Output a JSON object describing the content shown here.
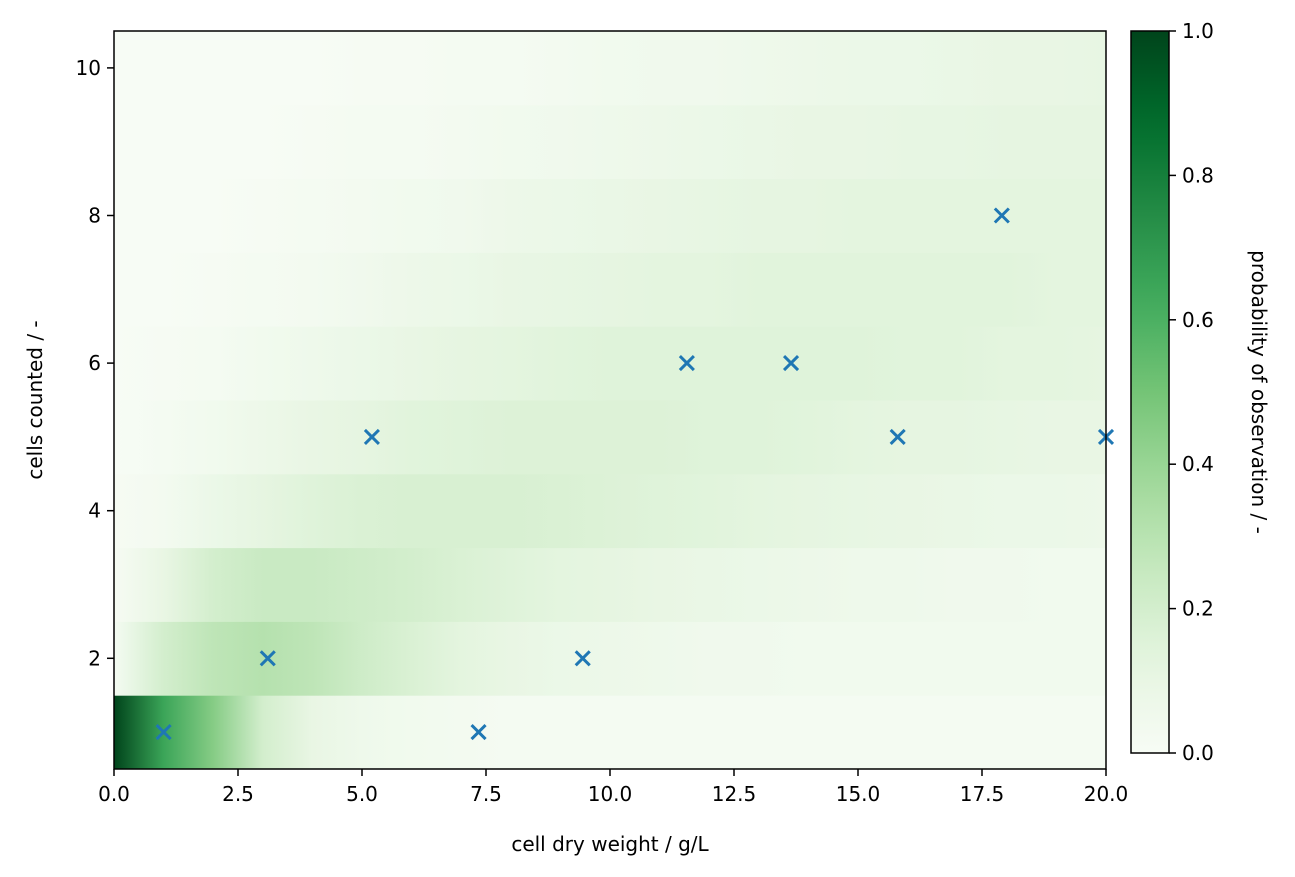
{
  "chart_data": {
    "type": "heatmap",
    "title": "",
    "xlabel": "cell dry weight / g/L",
    "ylabel": "cells counted / -",
    "xlim": [
      0,
      20
    ],
    "ylim": [
      0.5,
      10.5
    ],
    "x_ticks": [
      "0.0",
      "2.5",
      "5.0",
      "7.5",
      "10.0",
      "12.5",
      "15.0",
      "17.5",
      "20.0"
    ],
    "y_ticks": [
      "2",
      "4",
      "6",
      "8",
      "10"
    ],
    "colormap": "Greens",
    "colorbar": {
      "label": "probability of observation / -",
      "range": [
        0,
        1
      ],
      "ticks": [
        "0.0",
        "0.2",
        "0.4",
        "0.6",
        "0.8",
        "1.0"
      ]
    },
    "heatmap": {
      "description_rows": "cells counted 1..10 (bottom to top)",
      "x_samples": [
        0,
        1,
        2,
        3,
        4,
        5,
        6,
        7,
        8,
        9,
        10,
        11,
        12,
        13,
        14,
        15,
        16,
        17,
        18,
        19,
        20
      ],
      "rows": [
        [
          1.0,
          0.65,
          0.45,
          0.2,
          0.1,
          0.06,
          0.04,
          0.03,
          0.02,
          0.02,
          0.02,
          0.02,
          0.02,
          0.02,
          0.02,
          0.02,
          0.02,
          0.02,
          0.02,
          0.02,
          0.02
        ],
        [
          0.02,
          0.2,
          0.28,
          0.31,
          0.28,
          0.22,
          0.17,
          0.13,
          0.1,
          0.08,
          0.07,
          0.06,
          0.05,
          0.05,
          0.04,
          0.04,
          0.04,
          0.04,
          0.04,
          0.04,
          0.04
        ],
        [
          0.01,
          0.1,
          0.2,
          0.24,
          0.24,
          0.22,
          0.2,
          0.17,
          0.15,
          0.13,
          0.12,
          0.1,
          0.09,
          0.08,
          0.07,
          0.06,
          0.06,
          0.05,
          0.05,
          0.04,
          0.04
        ],
        [
          0.01,
          0.03,
          0.08,
          0.12,
          0.15,
          0.17,
          0.18,
          0.18,
          0.18,
          0.17,
          0.16,
          0.15,
          0.14,
          0.13,
          0.12,
          0.11,
          0.1,
          0.09,
          0.08,
          0.08,
          0.07
        ],
        [
          0.0,
          0.02,
          0.04,
          0.07,
          0.1,
          0.12,
          0.14,
          0.15,
          0.16,
          0.16,
          0.16,
          0.16,
          0.15,
          0.15,
          0.14,
          0.13,
          0.12,
          0.12,
          0.11,
          0.1,
          0.1
        ],
        [
          0.0,
          0.01,
          0.02,
          0.04,
          0.06,
          0.08,
          0.1,
          0.12,
          0.13,
          0.14,
          0.15,
          0.15,
          0.15,
          0.15,
          0.15,
          0.15,
          0.14,
          0.14,
          0.13,
          0.13,
          0.12
        ],
        [
          0.0,
          0.0,
          0.01,
          0.02,
          0.03,
          0.05,
          0.07,
          0.08,
          0.1,
          0.11,
          0.12,
          0.13,
          0.13,
          0.14,
          0.14,
          0.14,
          0.14,
          0.14,
          0.14,
          0.13,
          0.13
        ],
        [
          0.0,
          0.0,
          0.0,
          0.01,
          0.02,
          0.03,
          0.04,
          0.05,
          0.07,
          0.08,
          0.09,
          0.1,
          0.11,
          0.12,
          0.12,
          0.13,
          0.13,
          0.13,
          0.13,
          0.13,
          0.13
        ],
        [
          0.0,
          0.0,
          0.0,
          0.0,
          0.01,
          0.02,
          0.02,
          0.03,
          0.04,
          0.05,
          0.06,
          0.07,
          0.08,
          0.09,
          0.1,
          0.1,
          0.11,
          0.11,
          0.12,
          0.12,
          0.12
        ],
        [
          0.0,
          0.0,
          0.0,
          0.0,
          0.0,
          0.01,
          0.01,
          0.02,
          0.02,
          0.03,
          0.04,
          0.05,
          0.05,
          0.06,
          0.07,
          0.08,
          0.08,
          0.09,
          0.1,
          0.1,
          0.11
        ]
      ]
    },
    "series": [
      {
        "marker": "x",
        "color": "#1f77b4",
        "x": [
          1.0,
          3.1,
          5.2,
          7.35,
          9.45,
          11.55,
          13.65,
          15.8,
          17.9,
          20.0
        ],
        "y": [
          1,
          2,
          5,
          1,
          2,
          6,
          6,
          5,
          8,
          5
        ]
      }
    ]
  }
}
